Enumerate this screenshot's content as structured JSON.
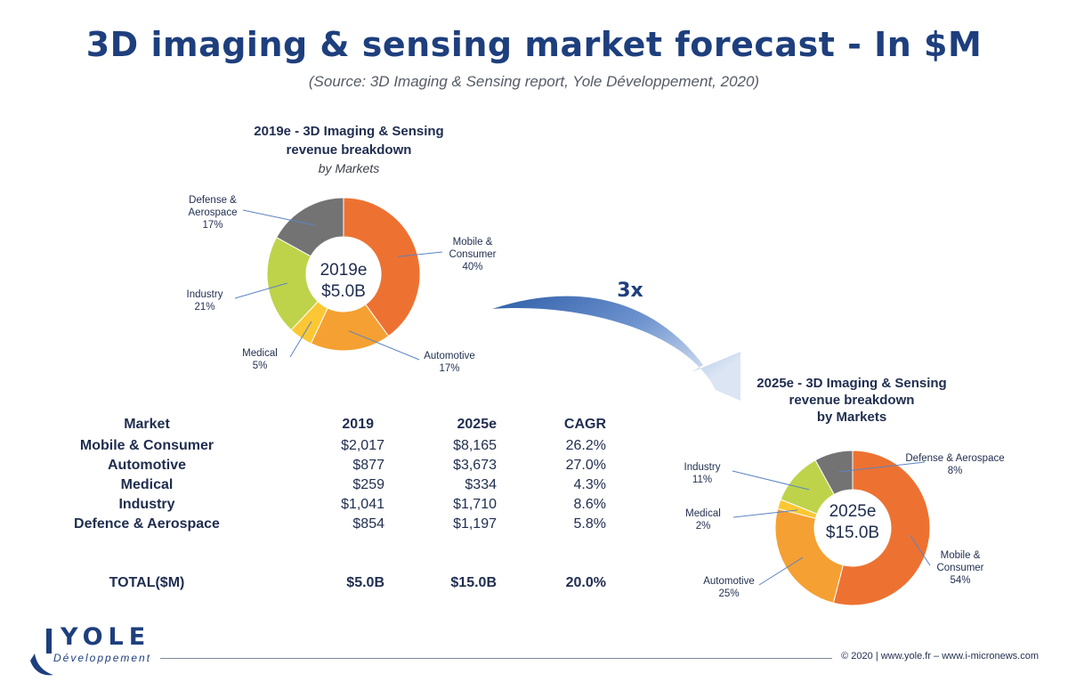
{
  "header": {
    "title": "3D imaging & sensing market forecast - In $M",
    "source": "(Source: 3D Imaging & Sensing report, Yole Développement, 2020)"
  },
  "multiplier_label": "3x",
  "colors": {
    "mobile": "#ed7232",
    "automotive": "#f5a032",
    "medical": "#fcc734",
    "industry": "#bed34a",
    "defense": "#737373",
    "arrow": "#3a6ab7"
  },
  "chart_data": [
    {
      "type": "pie",
      "donut": true,
      "title_lines": [
        "2019e - 3D Imaging & Sensing",
        "revenue breakdown"
      ],
      "subtitle": "by Markets",
      "center_lines": [
        "2019e",
        "$5.0B"
      ],
      "slices": [
        {
          "name": "Mobile & Consumer",
          "label_lines": [
            "Mobile &",
            "Consumer"
          ],
          "pct_label": "40%",
          "value": 40,
          "color": "#ed7232"
        },
        {
          "name": "Automotive",
          "label_lines": [
            "Automotive"
          ],
          "pct_label": "17%",
          "value": 17,
          "color": "#f5a032"
        },
        {
          "name": "Medical",
          "label_lines": [
            "Medical"
          ],
          "pct_label": "5%",
          "value": 5,
          "color": "#fcc734"
        },
        {
          "name": "Industry",
          "label_lines": [
            "Industry"
          ],
          "pct_label": "21%",
          "value": 21,
          "color": "#bed34a"
        },
        {
          "name": "Defense & Aerospace",
          "label_lines": [
            "Defense &",
            "Aerospace"
          ],
          "pct_label": "17%",
          "value": 17,
          "color": "#737373"
        }
      ]
    },
    {
      "type": "pie",
      "donut": true,
      "title_lines": [
        "2025e - 3D Imaging & Sensing",
        "revenue breakdown",
        "by Markets"
      ],
      "subtitle": "",
      "center_lines": [
        "2025e",
        "$15.0B"
      ],
      "slices": [
        {
          "name": "Mobile & Consumer",
          "label_lines": [
            "Mobile &",
            "Consumer"
          ],
          "pct_label": "54%",
          "value": 54,
          "color": "#ed7232"
        },
        {
          "name": "Automotive",
          "label_lines": [
            "Automotive"
          ],
          "pct_label": "25%",
          "value": 25,
          "color": "#f5a032"
        },
        {
          "name": "Medical",
          "label_lines": [
            "Medical"
          ],
          "pct_label": "2%",
          "value": 2,
          "color": "#fcc734"
        },
        {
          "name": "Industry",
          "label_lines": [
            "Industry"
          ],
          "pct_label": "11%",
          "value": 11,
          "color": "#bed34a"
        },
        {
          "name": "Defense & Aerospace",
          "label_lines": [
            "Defense & Aerospace"
          ],
          "pct_label": "8%",
          "value": 8,
          "color": "#737373"
        }
      ]
    },
    {
      "type": "table",
      "columns": [
        "Market",
        "2019",
        "2025e",
        "CAGR"
      ],
      "rows": [
        [
          "Mobile & Consumer",
          "$2,017",
          "$8,165",
          "26.2%"
        ],
        [
          "Automotive",
          "$877",
          "$3,673",
          "27.0%"
        ],
        [
          "Medical",
          "$259",
          "$334",
          "4.3%"
        ],
        [
          "Industry",
          "$1,041",
          "$1,710",
          "8.6%"
        ],
        [
          "Defence & Aerospace",
          "$854",
          "$1,197",
          "5.8%"
        ]
      ],
      "total": [
        "TOTAL($M)",
        "$5.0B",
        "$15.0B",
        "20.0%"
      ]
    }
  ],
  "logo": {
    "name": "YOLE",
    "sub": "Développement"
  },
  "footer": "© 2020 | www.yole.fr – www.i-micronews.com"
}
